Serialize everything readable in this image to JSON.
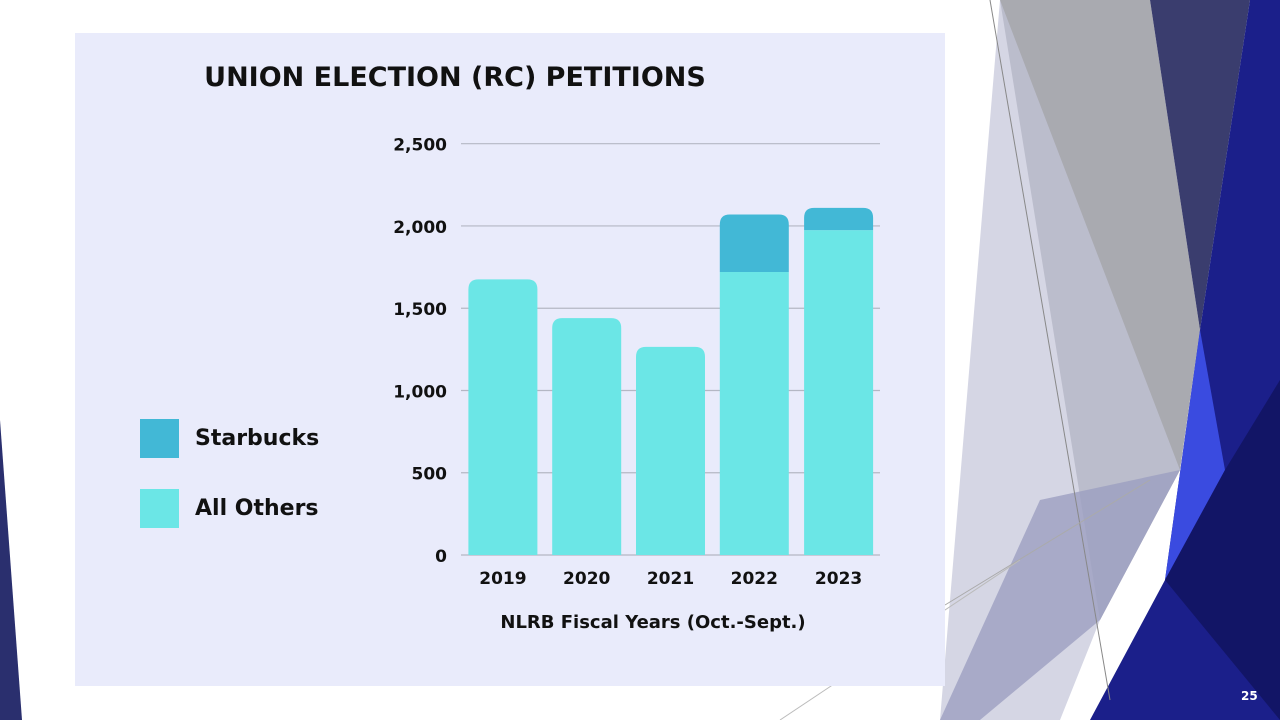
{
  "slide": {
    "page_number": "25"
  },
  "chart_data": {
    "type": "bar",
    "stacked": true,
    "title": "UNION ELECTION (RC) PETITIONS",
    "xlabel": "NLRB Fiscal Years (Oct.-Sept.)",
    "ylabel": "",
    "categories": [
      "2019",
      "2020",
      "2021",
      "2022",
      "2023"
    ],
    "series": [
      {
        "name": "All Others",
        "color": "#6be6e6",
        "values": [
          1675,
          1440,
          1265,
          1720,
          1975
        ]
      },
      {
        "name": "Starbucks",
        "color": "#42b8d6",
        "values": [
          0,
          0,
          0,
          350,
          135
        ]
      }
    ],
    "ylim": [
      0,
      2500
    ],
    "yticks": [
      "0",
      "500",
      "1,000",
      "1,500",
      "2,000",
      "2,500"
    ],
    "ytick_values": [
      0,
      500,
      1000,
      1500,
      2000,
      2500
    ],
    "grid": true,
    "legend_position": "left",
    "legend": [
      "Starbucks",
      "All Others"
    ]
  }
}
